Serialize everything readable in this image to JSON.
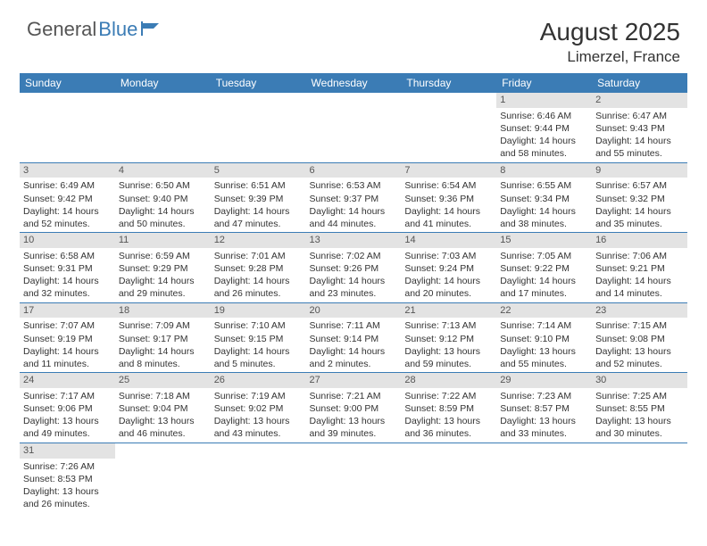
{
  "logo": {
    "general": "General",
    "blue": "Blue"
  },
  "title": "August 2025",
  "location": "Limerzel, France",
  "colors": {
    "header_bg": "#3b7cb5",
    "header_text": "#ffffff",
    "daynum_bg": "#e3e3e3",
    "border": "#3b7cb5",
    "text": "#333333"
  },
  "day_headers": [
    "Sunday",
    "Monday",
    "Tuesday",
    "Wednesday",
    "Thursday",
    "Friday",
    "Saturday"
  ],
  "weeks": [
    [
      null,
      null,
      null,
      null,
      null,
      {
        "n": "1",
        "sr": "Sunrise: 6:46 AM",
        "ss": "Sunset: 9:44 PM",
        "dl": "Daylight: 14 hours and 58 minutes."
      },
      {
        "n": "2",
        "sr": "Sunrise: 6:47 AM",
        "ss": "Sunset: 9:43 PM",
        "dl": "Daylight: 14 hours and 55 minutes."
      }
    ],
    [
      {
        "n": "3",
        "sr": "Sunrise: 6:49 AM",
        "ss": "Sunset: 9:42 PM",
        "dl": "Daylight: 14 hours and 52 minutes."
      },
      {
        "n": "4",
        "sr": "Sunrise: 6:50 AM",
        "ss": "Sunset: 9:40 PM",
        "dl": "Daylight: 14 hours and 50 minutes."
      },
      {
        "n": "5",
        "sr": "Sunrise: 6:51 AM",
        "ss": "Sunset: 9:39 PM",
        "dl": "Daylight: 14 hours and 47 minutes."
      },
      {
        "n": "6",
        "sr": "Sunrise: 6:53 AM",
        "ss": "Sunset: 9:37 PM",
        "dl": "Daylight: 14 hours and 44 minutes."
      },
      {
        "n": "7",
        "sr": "Sunrise: 6:54 AM",
        "ss": "Sunset: 9:36 PM",
        "dl": "Daylight: 14 hours and 41 minutes."
      },
      {
        "n": "8",
        "sr": "Sunrise: 6:55 AM",
        "ss": "Sunset: 9:34 PM",
        "dl": "Daylight: 14 hours and 38 minutes."
      },
      {
        "n": "9",
        "sr": "Sunrise: 6:57 AM",
        "ss": "Sunset: 9:32 PM",
        "dl": "Daylight: 14 hours and 35 minutes."
      }
    ],
    [
      {
        "n": "10",
        "sr": "Sunrise: 6:58 AM",
        "ss": "Sunset: 9:31 PM",
        "dl": "Daylight: 14 hours and 32 minutes."
      },
      {
        "n": "11",
        "sr": "Sunrise: 6:59 AM",
        "ss": "Sunset: 9:29 PM",
        "dl": "Daylight: 14 hours and 29 minutes."
      },
      {
        "n": "12",
        "sr": "Sunrise: 7:01 AM",
        "ss": "Sunset: 9:28 PM",
        "dl": "Daylight: 14 hours and 26 minutes."
      },
      {
        "n": "13",
        "sr": "Sunrise: 7:02 AM",
        "ss": "Sunset: 9:26 PM",
        "dl": "Daylight: 14 hours and 23 minutes."
      },
      {
        "n": "14",
        "sr": "Sunrise: 7:03 AM",
        "ss": "Sunset: 9:24 PM",
        "dl": "Daylight: 14 hours and 20 minutes."
      },
      {
        "n": "15",
        "sr": "Sunrise: 7:05 AM",
        "ss": "Sunset: 9:22 PM",
        "dl": "Daylight: 14 hours and 17 minutes."
      },
      {
        "n": "16",
        "sr": "Sunrise: 7:06 AM",
        "ss": "Sunset: 9:21 PM",
        "dl": "Daylight: 14 hours and 14 minutes."
      }
    ],
    [
      {
        "n": "17",
        "sr": "Sunrise: 7:07 AM",
        "ss": "Sunset: 9:19 PM",
        "dl": "Daylight: 14 hours and 11 minutes."
      },
      {
        "n": "18",
        "sr": "Sunrise: 7:09 AM",
        "ss": "Sunset: 9:17 PM",
        "dl": "Daylight: 14 hours and 8 minutes."
      },
      {
        "n": "19",
        "sr": "Sunrise: 7:10 AM",
        "ss": "Sunset: 9:15 PM",
        "dl": "Daylight: 14 hours and 5 minutes."
      },
      {
        "n": "20",
        "sr": "Sunrise: 7:11 AM",
        "ss": "Sunset: 9:14 PM",
        "dl": "Daylight: 14 hours and 2 minutes."
      },
      {
        "n": "21",
        "sr": "Sunrise: 7:13 AM",
        "ss": "Sunset: 9:12 PM",
        "dl": "Daylight: 13 hours and 59 minutes."
      },
      {
        "n": "22",
        "sr": "Sunrise: 7:14 AM",
        "ss": "Sunset: 9:10 PM",
        "dl": "Daylight: 13 hours and 55 minutes."
      },
      {
        "n": "23",
        "sr": "Sunrise: 7:15 AM",
        "ss": "Sunset: 9:08 PM",
        "dl": "Daylight: 13 hours and 52 minutes."
      }
    ],
    [
      {
        "n": "24",
        "sr": "Sunrise: 7:17 AM",
        "ss": "Sunset: 9:06 PM",
        "dl": "Daylight: 13 hours and 49 minutes."
      },
      {
        "n": "25",
        "sr": "Sunrise: 7:18 AM",
        "ss": "Sunset: 9:04 PM",
        "dl": "Daylight: 13 hours and 46 minutes."
      },
      {
        "n": "26",
        "sr": "Sunrise: 7:19 AM",
        "ss": "Sunset: 9:02 PM",
        "dl": "Daylight: 13 hours and 43 minutes."
      },
      {
        "n": "27",
        "sr": "Sunrise: 7:21 AM",
        "ss": "Sunset: 9:00 PM",
        "dl": "Daylight: 13 hours and 39 minutes."
      },
      {
        "n": "28",
        "sr": "Sunrise: 7:22 AM",
        "ss": "Sunset: 8:59 PM",
        "dl": "Daylight: 13 hours and 36 minutes."
      },
      {
        "n": "29",
        "sr": "Sunrise: 7:23 AM",
        "ss": "Sunset: 8:57 PM",
        "dl": "Daylight: 13 hours and 33 minutes."
      },
      {
        "n": "30",
        "sr": "Sunrise: 7:25 AM",
        "ss": "Sunset: 8:55 PM",
        "dl": "Daylight: 13 hours and 30 minutes."
      }
    ],
    [
      {
        "n": "31",
        "sr": "Sunrise: 7:26 AM",
        "ss": "Sunset: 8:53 PM",
        "dl": "Daylight: 13 hours and 26 minutes."
      },
      null,
      null,
      null,
      null,
      null,
      null
    ]
  ]
}
